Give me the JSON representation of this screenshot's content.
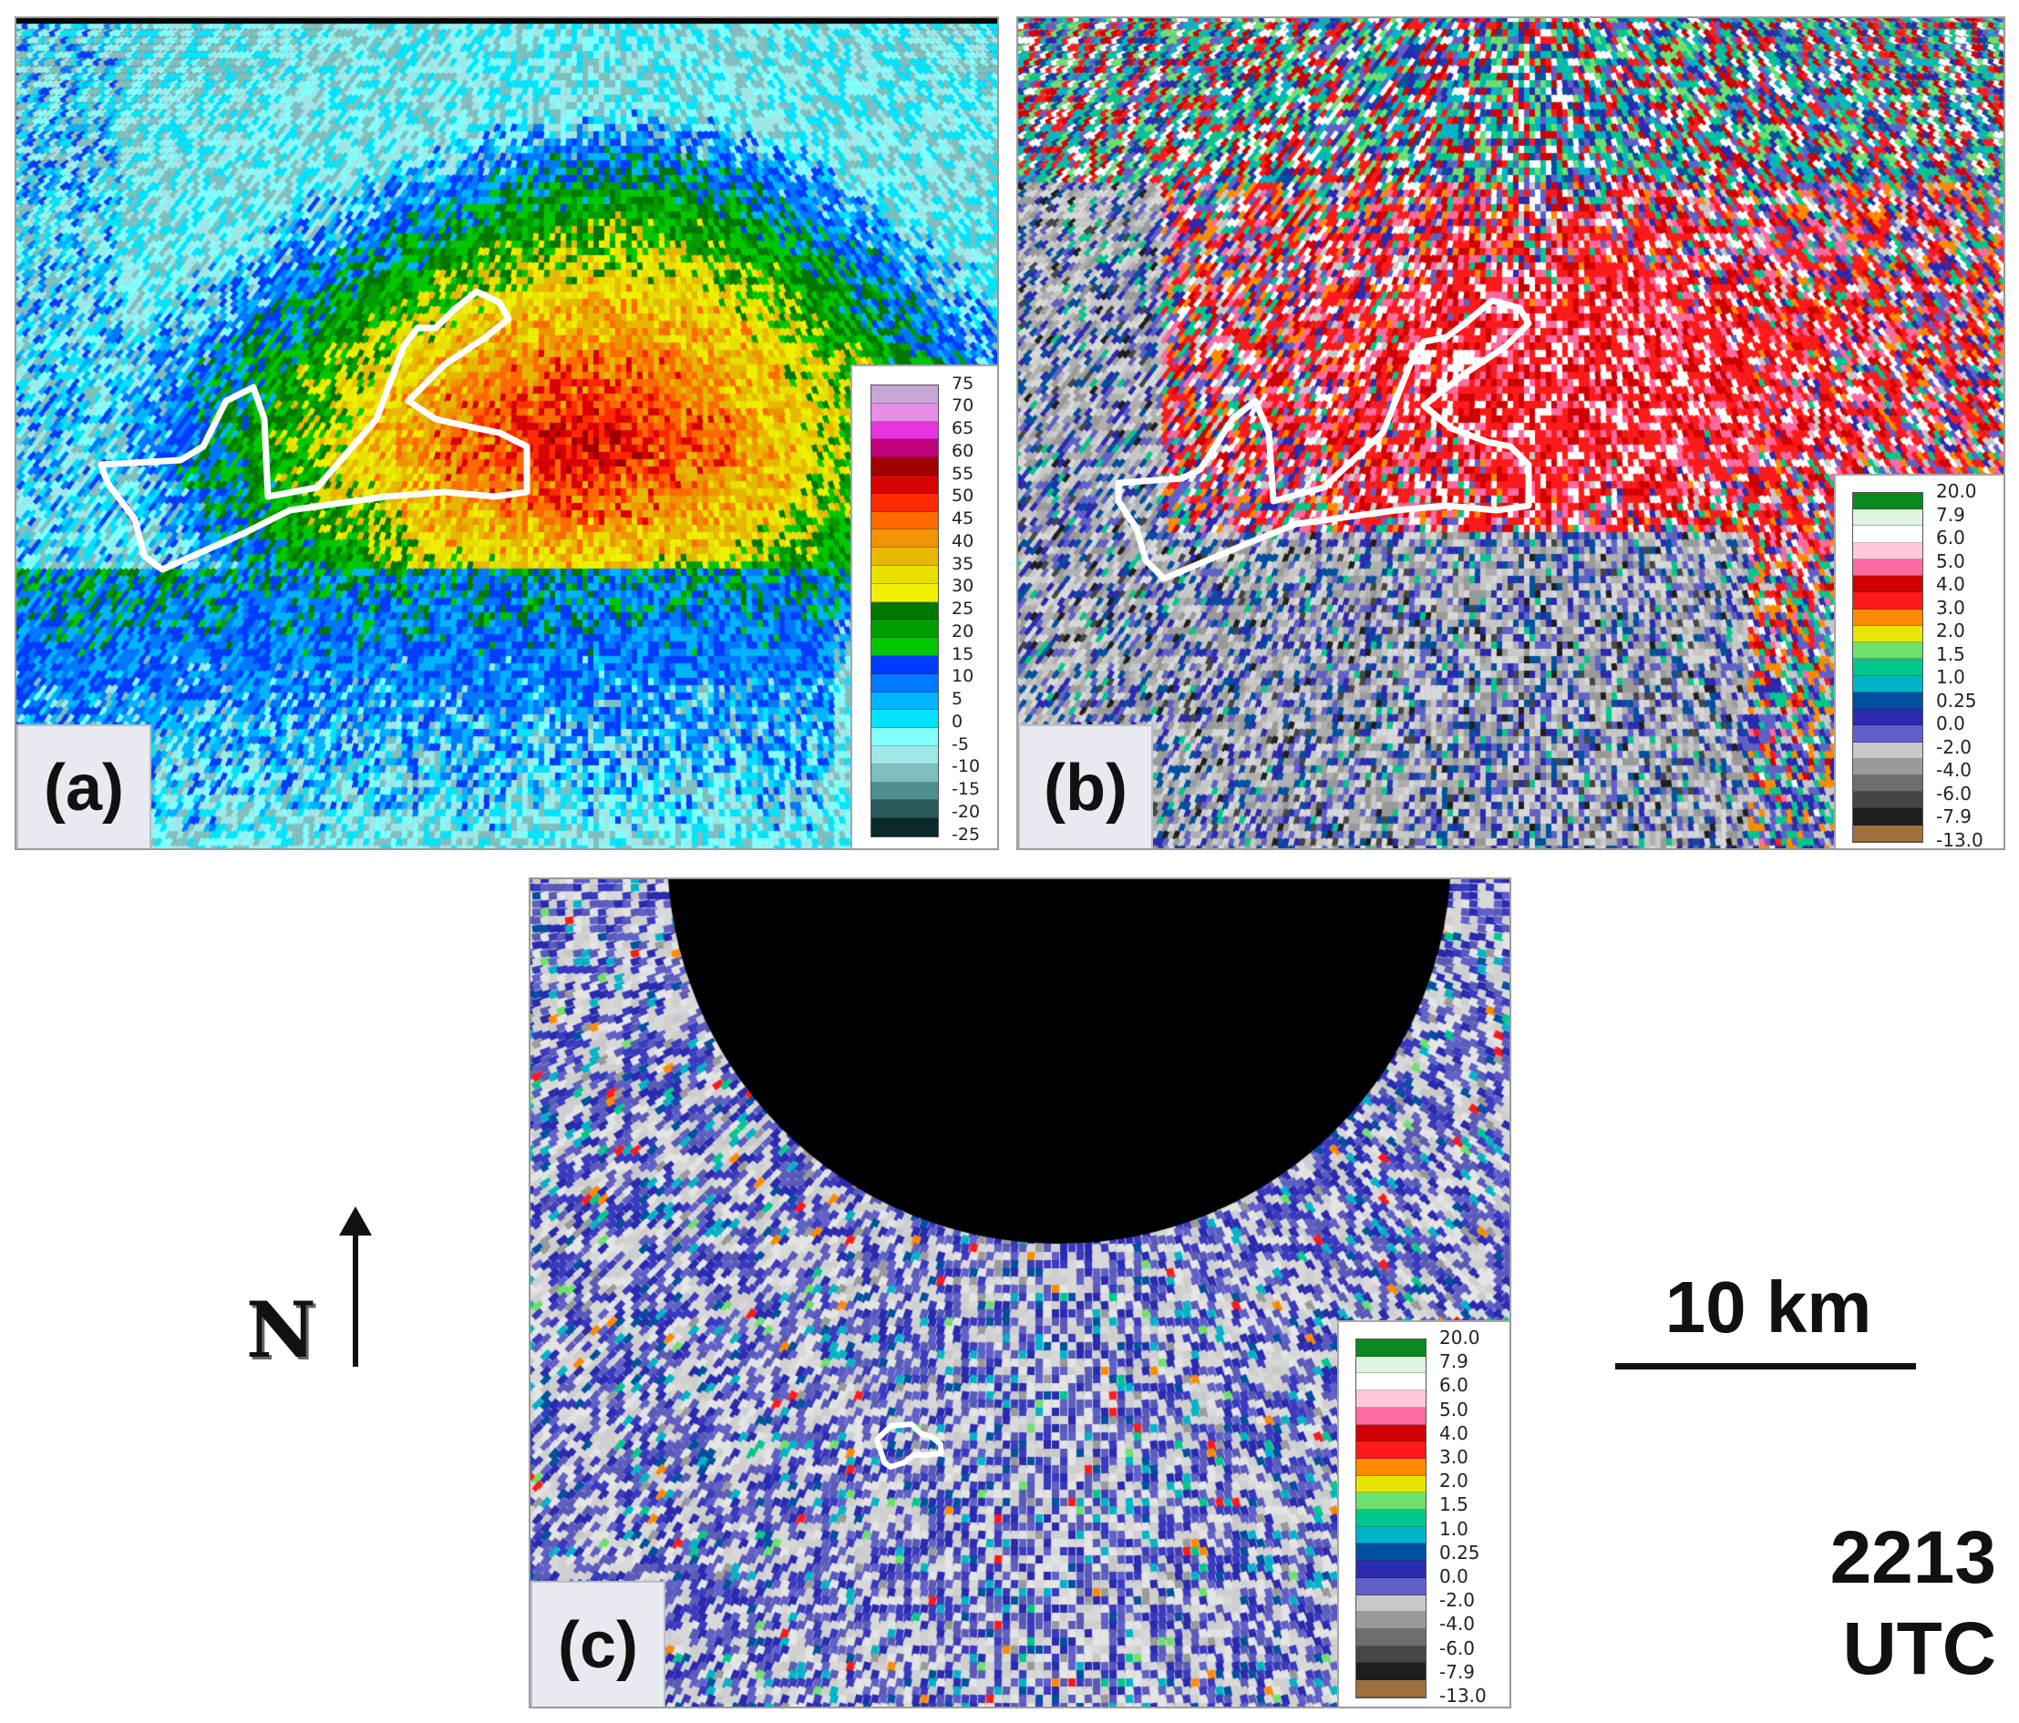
{
  "panels": [
    {
      "id": "a",
      "label": "(a)",
      "legend": {
        "ticks": [
          "75",
          "70",
          "65",
          "60",
          "55",
          "50",
          "45",
          "40",
          "35",
          "30",
          "25",
          "20",
          "15",
          "10",
          "5",
          "0",
          "-5",
          "-10",
          "-15",
          "-20",
          "-25"
        ],
        "colors": [
          "#c9a6d8",
          "#e98ee8",
          "#e534e0",
          "#c1007c",
          "#a00000",
          "#d80000",
          "#ff2a00",
          "#ff6a00",
          "#f09400",
          "#e8b800",
          "#e8e000",
          "#f0f000",
          "#007800",
          "#009c00",
          "#00c800",
          "#003cff",
          "#0078ff",
          "#00b4ff",
          "#00e4ff",
          "#82ffff",
          "#a0e8e8",
          "#7fbfbf",
          "#4f8f8f",
          "#2a5a5a",
          "#0a2a2a"
        ]
      }
    },
    {
      "id": "b",
      "label": "(b)",
      "legend": {
        "ticks": [
          "20.0",
          "7.9",
          "6.0",
          "5.0",
          "4.0",
          "3.0",
          "2.0",
          "1.5",
          "1.0",
          "0.25",
          "0.0",
          "-2.0",
          "-4.0",
          "-6.0",
          "-7.9",
          "-13.0"
        ],
        "colors": [
          "#0a8a1e",
          "#dff5df",
          "#ffffff",
          "#ffc8d8",
          "#ff6aa0",
          "#d00000",
          "#ff1a1a",
          "#ff8a00",
          "#e6e600",
          "#6ee06e",
          "#00c88c",
          "#00b4c8",
          "#0050a0",
          "#2a2ab0",
          "#6060c8",
          "#c8c8c8",
          "#9a9a9a",
          "#6e6e6e",
          "#464646",
          "#1e1e1e",
          "#a0703c"
        ]
      }
    },
    {
      "id": "c",
      "label": "(c)",
      "legend": {
        "ticks": [
          "20.0",
          "7.9",
          "6.0",
          "5.0",
          "4.0",
          "3.0",
          "2.0",
          "1.5",
          "1.0",
          "0.25",
          "0.0",
          "-2.0",
          "-4.0",
          "-6.0",
          "-7.9",
          "-13.0"
        ],
        "colors": [
          "#0a8a1e",
          "#dff5df",
          "#ffffff",
          "#ffc8d8",
          "#ff6aa0",
          "#d00000",
          "#ff1a1a",
          "#ff8a00",
          "#e6e600",
          "#6ee06e",
          "#00c88c",
          "#00b4c8",
          "#0050a0",
          "#2a2ab0",
          "#6060c8",
          "#c8c8c8",
          "#9a9a9a",
          "#6e6e6e",
          "#464646",
          "#1e1e1e",
          "#a0703c"
        ]
      }
    }
  ],
  "north_label": "N",
  "scale_label": "10 km",
  "time": {
    "line1": "2213",
    "line2": "UTC"
  },
  "icons": {
    "north": "north-arrow-icon"
  }
}
